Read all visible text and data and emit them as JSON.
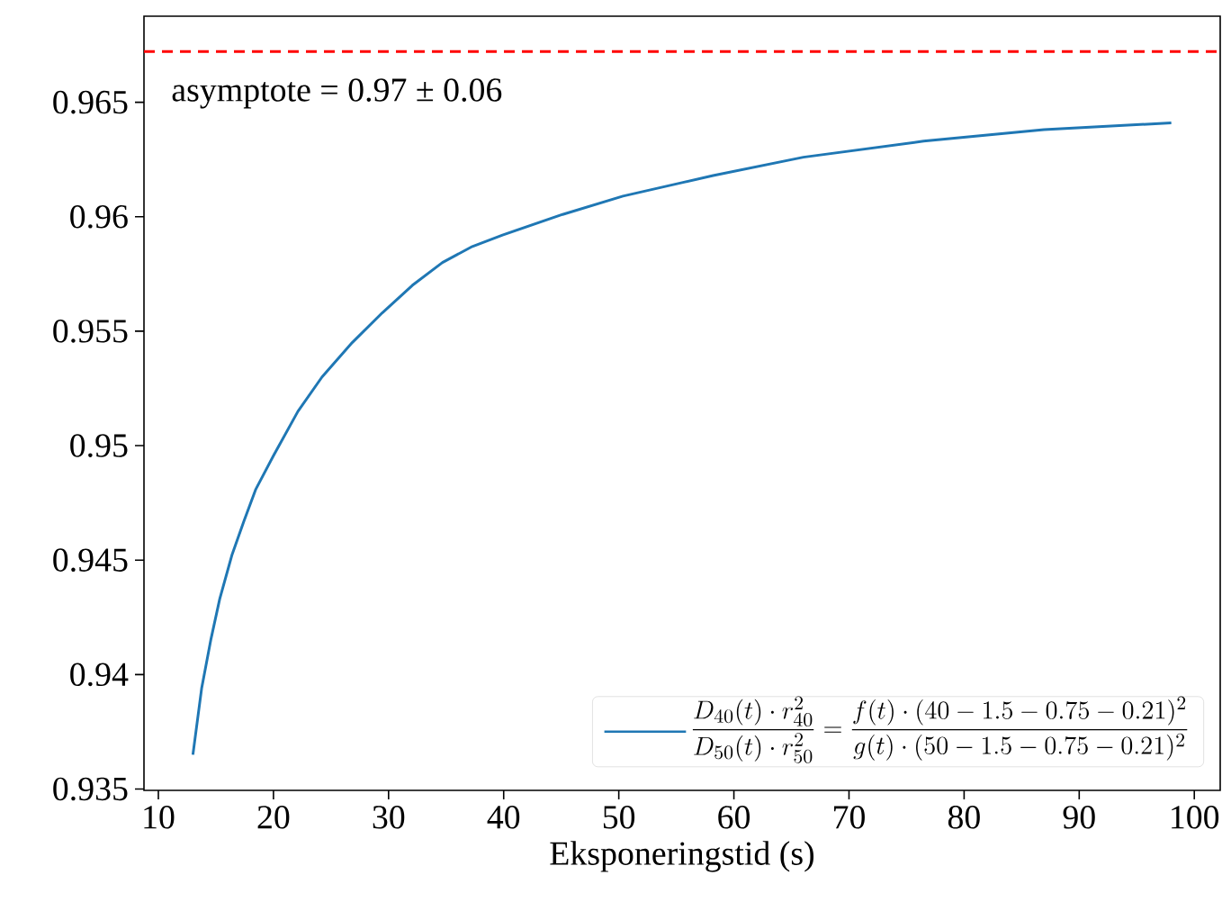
{
  "chart_data": {
    "type": "line",
    "xlabel": "Eksponeringstid (s)",
    "annotations": [
      "asymptote = 0.97 ± 0.06"
    ],
    "xlim": [
      8.75,
      102.25
    ],
    "ylim": [
      0.93494,
      0.96876
    ],
    "xticks": [
      10,
      20,
      30,
      40,
      50,
      60,
      70,
      80,
      90,
      100
    ],
    "yticks": [
      0.935,
      0.94,
      0.945,
      0.95,
      0.955,
      0.96,
      0.965
    ],
    "grid": false,
    "legend": "bottom right",
    "marker": "none",
    "line_style": "solid",
    "ref_lines": [
      {
        "axis": "y",
        "value": 0.96722,
        "color": "#ff0000",
        "line_style": "dashed"
      }
    ],
    "series": [
      {
        "name": "\\frac{D_{40}(t)\\cdot r_{40}^2}{D_{50}(t)\\cdot r_{50}^2} = \\frac{f(t)\\cdot(40-1.5-0.75-0.21)^2}{g(t)\\cdot(50-1.5-0.75-0.21)^2}",
        "color": "#1f77b4",
        "x": [
          13.0,
          13.76,
          14.55,
          15.33,
          16.38,
          17.43,
          18.47,
          20.04,
          22.13,
          24.22,
          26.84,
          29.45,
          32.06,
          34.68,
          37.28,
          39.9,
          45.12,
          50.36,
          55.58,
          58.2,
          66.04,
          76.48,
          86.94,
          98.0
        ],
        "values": [
          0.9365,
          0.9394,
          0.9415,
          0.9433,
          0.9452,
          0.9467,
          0.9481,
          0.9496,
          0.9515,
          0.953,
          0.9545,
          0.9558,
          0.957,
          0.958,
          0.9587,
          0.9592,
          0.9601,
          0.9609,
          0.9615,
          0.9618,
          0.9626,
          0.9633,
          0.9638,
          0.9641
        ]
      }
    ]
  }
}
